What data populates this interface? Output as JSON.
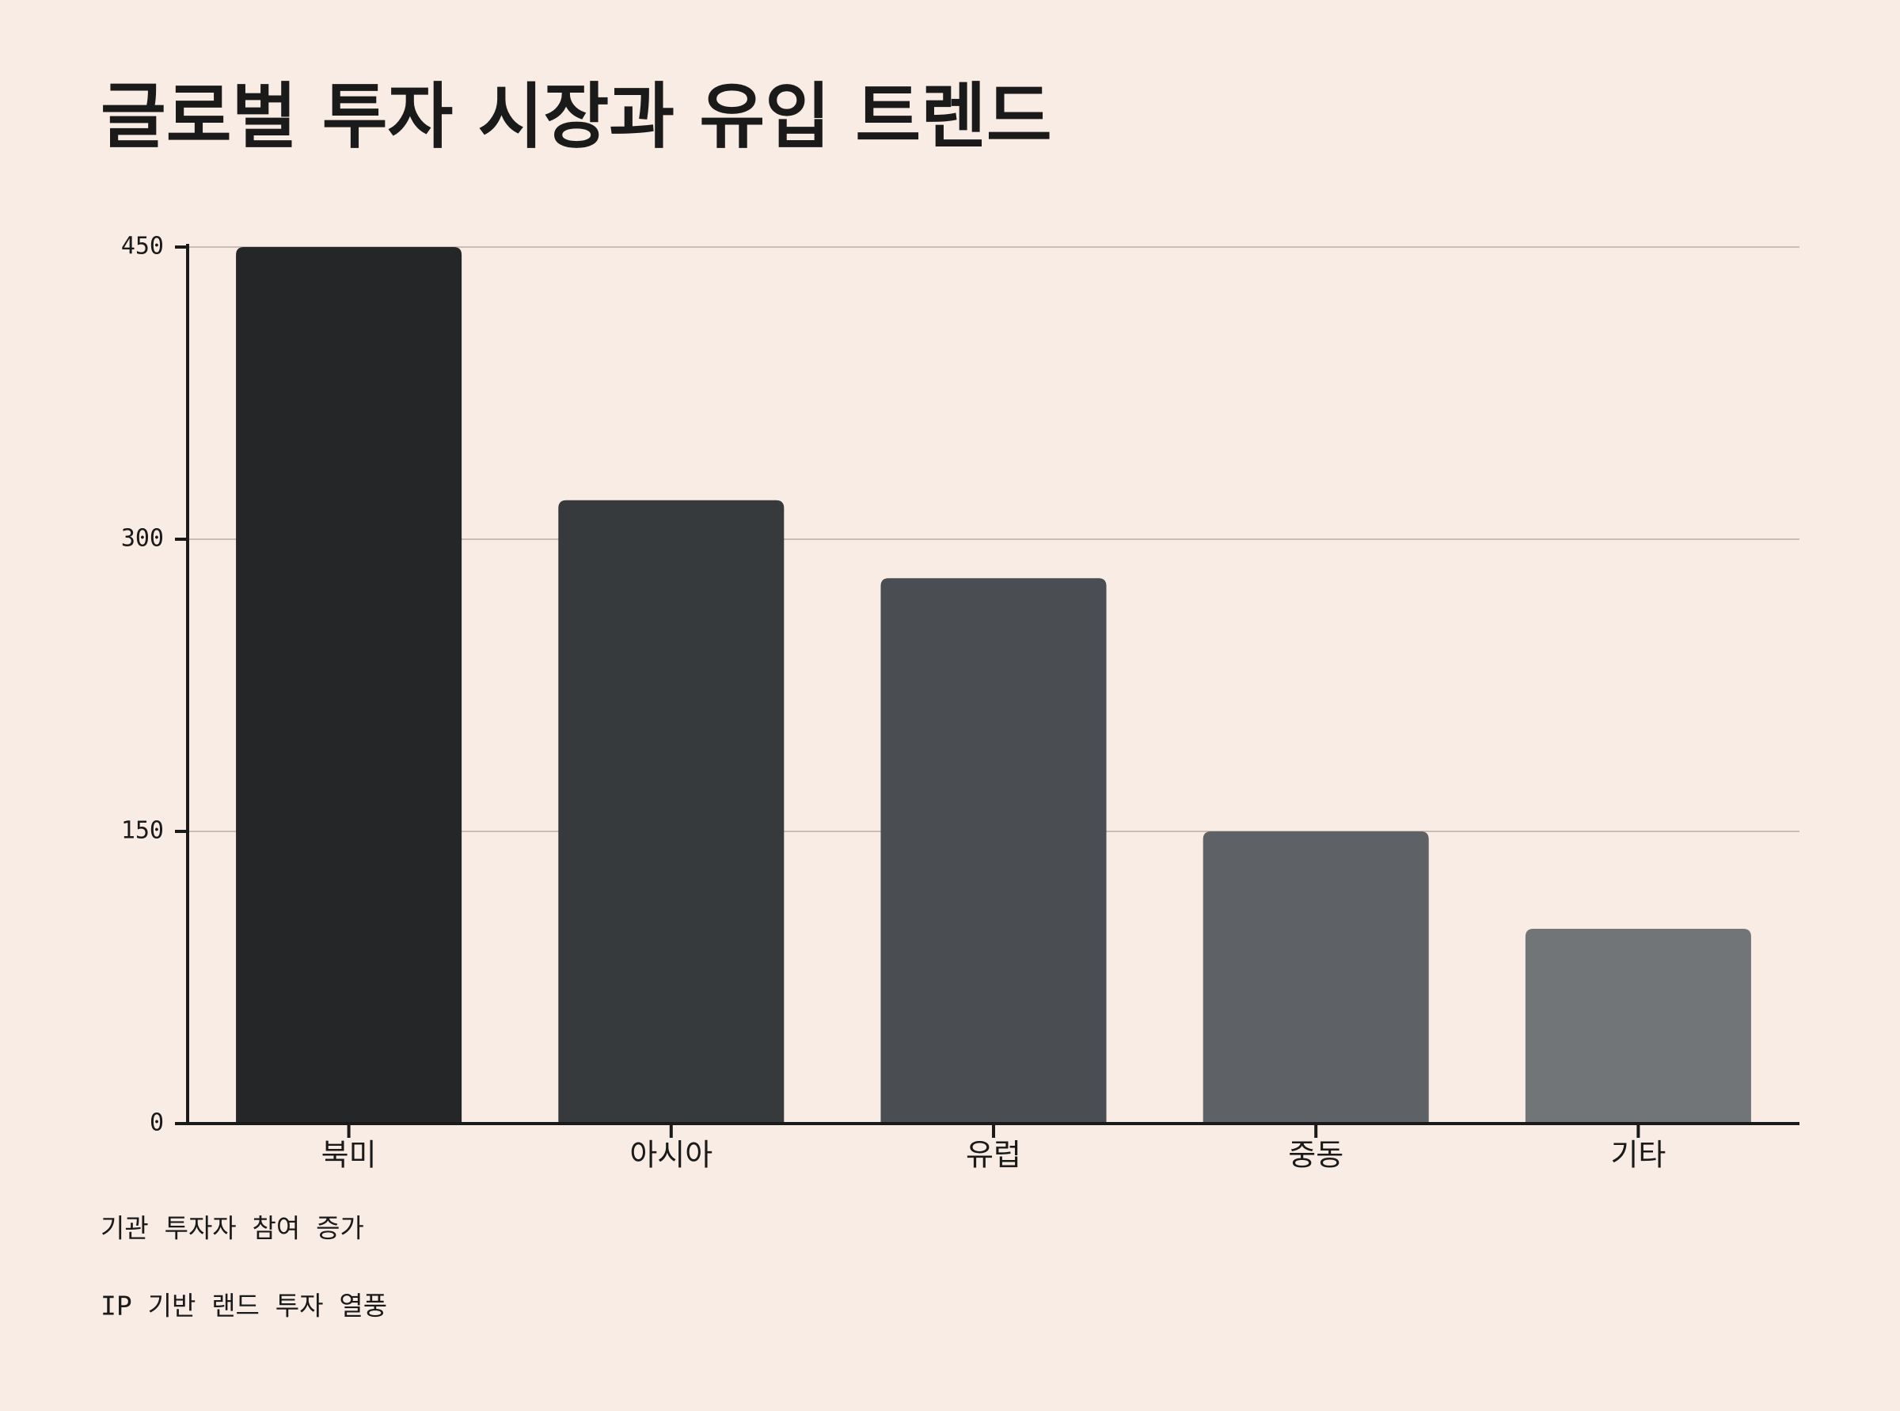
{
  "chart_data": {
    "type": "bar",
    "title": "글로벌 투자 시장과 유입 트렌드",
    "categories": [
      "북미",
      "아시아",
      "유럽",
      "중동",
      "기타"
    ],
    "values": [
      450,
      320,
      280,
      150,
      100
    ],
    "colors": [
      "#252627",
      "#373a3d",
      "#4a4d51",
      "#5e6165",
      "#727578"
    ],
    "ylim": [
      0,
      450
    ],
    "yticks": [
      0,
      150,
      300,
      450
    ],
    "grid": true,
    "annotations": [
      "기관 투자자 참여 증가",
      "IP 기반 랜드 투자 열풍"
    ]
  }
}
